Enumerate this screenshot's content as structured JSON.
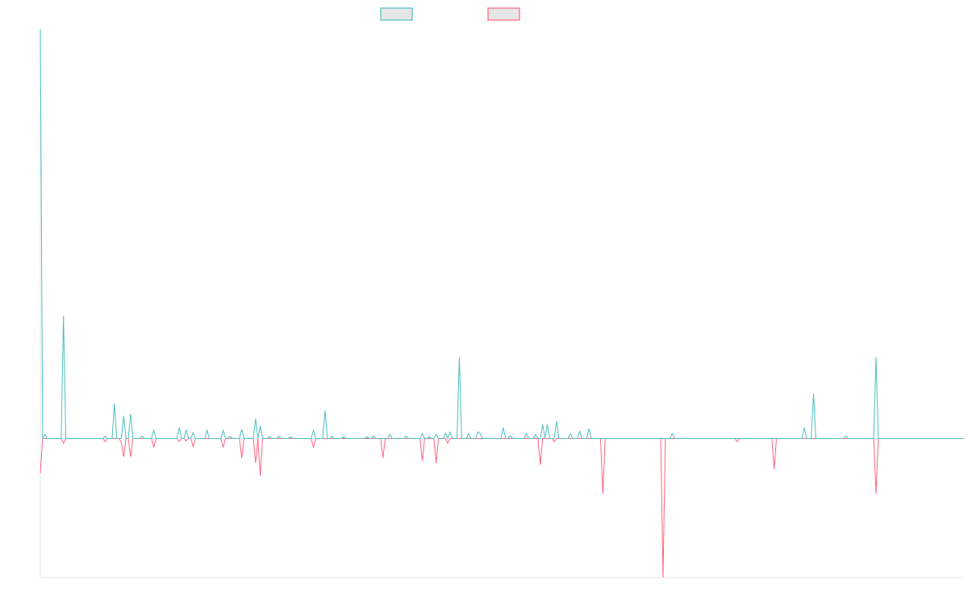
{
  "chart_data": {
    "type": "line",
    "title": "",
    "xlabel": "",
    "ylabel": "",
    "grid": false,
    "legend_position": "top-center",
    "ylim": [
      -0.34,
      1.0
    ],
    "n_points": 400,
    "series": [
      {
        "swatch_color": "#4bc0c0",
        "swatch_fill": "#e6e6e6",
        "baseline": 0,
        "values_sparse": [
          [
            0,
            1.0
          ],
          [
            2,
            0.01
          ],
          [
            10,
            0.3
          ],
          [
            28,
            0.005
          ],
          [
            32,
            0.085
          ],
          [
            36,
            0.055
          ],
          [
            39,
            0.06
          ],
          [
            44,
            0.006
          ],
          [
            49,
            0.02
          ],
          [
            60,
            0.026
          ],
          [
            63,
            0.02
          ],
          [
            66,
            0.014
          ],
          [
            72,
            0.02
          ],
          [
            79,
            0.02
          ],
          [
            82,
            0.005
          ],
          [
            87,
            0.022
          ],
          [
            93,
            0.048
          ],
          [
            95,
            0.03
          ],
          [
            99,
            0.005
          ],
          [
            103,
            0.005
          ],
          [
            108,
            0.004
          ],
          [
            118,
            0.02
          ],
          [
            123,
            0.068
          ],
          [
            126,
            0.005
          ],
          [
            131,
            0.003
          ],
          [
            141,
            0.004
          ],
          [
            144,
            0.006
          ],
          [
            151,
            0.01
          ],
          [
            158,
            0.006
          ],
          [
            165,
            0.012
          ],
          [
            168,
            0.004
          ],
          [
            171,
            0.01
          ],
          [
            175,
            0.013
          ],
          [
            177,
            0.015
          ],
          [
            181,
            0.198
          ],
          [
            185,
            0.012
          ],
          [
            189,
            0.016
          ],
          [
            190,
            0.012
          ],
          [
            200,
            0.026
          ],
          [
            203,
            0.007
          ],
          [
            210,
            0.012
          ],
          [
            214,
            0.01
          ],
          [
            216,
            0.0
          ],
          [
            217,
            0.034
          ],
          [
            219,
            0.034
          ],
          [
            223,
            0.042
          ],
          [
            229,
            0.012
          ],
          [
            233,
            0.017
          ],
          [
            237,
            0.024
          ],
          [
            269,
            0.036
          ],
          [
            269,
            0.0
          ],
          [
            273,
            0.012
          ],
          [
            279,
            0.0
          ],
          [
            282,
            0.0
          ],
          [
            292,
            0.0
          ],
          [
            305,
            0.0
          ],
          [
            320,
            0.0
          ],
          [
            330,
            0.026
          ],
          [
            334,
            0.109
          ],
          [
            348,
            0.006
          ],
          [
            361,
            0.198
          ]
        ]
      },
      {
        "swatch_color": "#ff6384",
        "swatch_fill": "#e6e6e6",
        "baseline": 0,
        "values_sparse": [
          [
            0,
            -0.085
          ],
          [
            2,
            0.0
          ],
          [
            10,
            -0.012
          ],
          [
            28,
            -0.008
          ],
          [
            35,
            -0.01
          ],
          [
            36,
            -0.045
          ],
          [
            39,
            -0.045
          ],
          [
            49,
            -0.022
          ],
          [
            60,
            -0.008
          ],
          [
            63,
            -0.006
          ],
          [
            66,
            -0.02
          ],
          [
            79,
            -0.022
          ],
          [
            87,
            -0.048
          ],
          [
            93,
            -0.06
          ],
          [
            95,
            -0.092
          ],
          [
            118,
            -0.022
          ],
          [
            148,
            -0.048
          ],
          [
            165,
            -0.055
          ],
          [
            171,
            -0.06
          ],
          [
            176,
            -0.012
          ],
          [
            216,
            -0.065
          ],
          [
            222,
            -0.008
          ],
          [
            243,
            -0.136
          ],
          [
            269,
            -0.34
          ],
          [
            301,
            -0.008
          ],
          [
            317,
            -0.075
          ],
          [
            361,
            -0.135
          ]
        ]
      }
    ]
  }
}
